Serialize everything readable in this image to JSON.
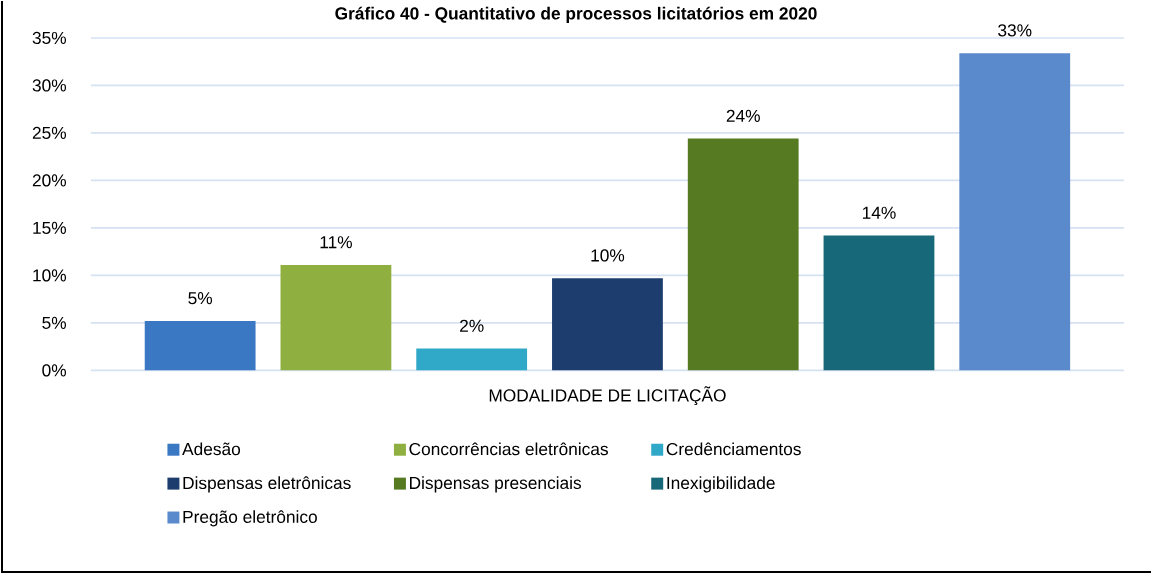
{
  "chart_data": {
    "type": "bar",
    "title": "Gráfico 40 - Quantitativo de processos licitatórios em 2020",
    "xlabel": "MODALIDADE DE LICITAÇÃO",
    "categories": [
      null
    ],
    "series": [
      {
        "name": "Adesão",
        "color": "#3a78c3",
        "values": [
          5.2
        ],
        "value_labels": [
          "5%"
        ]
      },
      {
        "name": "Concorrências eletrônicas",
        "color": "#8fb040",
        "values": [
          11.1
        ],
        "value_labels": [
          "11%"
        ]
      },
      {
        "name": "Credênciamentos",
        "color": "#30a8c8",
        "values": [
          2.3
        ],
        "value_labels": [
          "2%"
        ]
      },
      {
        "name": "Dispensas eletrônicas",
        "color": "#1c3d6e",
        "values": [
          9.7
        ],
        "value_labels": [
          "10%"
        ]
      },
      {
        "name": "Dispensas presenciais",
        "color": "#557a22",
        "values": [
          24.4
        ],
        "value_labels": [
          "24%"
        ]
      },
      {
        "name": "Inexigibilidade",
        "color": "#176878",
        "values": [
          14.2
        ],
        "value_labels": [
          "14%"
        ]
      },
      {
        "name": "Pregão eletrônico",
        "color": "#5a8acb",
        "values": [
          33.4
        ],
        "value_labels": [
          "33%"
        ]
      }
    ],
    "ylim": [
      0,
      35
    ],
    "yticks": [
      {
        "value": 0,
        "label": "0%"
      },
      {
        "value": 5,
        "label": "5%"
      },
      {
        "value": 10,
        "label": "10%"
      },
      {
        "value": 15,
        "label": "15%"
      },
      {
        "value": 20,
        "label": "20%"
      },
      {
        "value": 25,
        "label": "25%"
      },
      {
        "value": 30,
        "label": "30%"
      },
      {
        "value": 35,
        "label": "35%"
      }
    ],
    "grid": "y",
    "legend": "bottom"
  }
}
